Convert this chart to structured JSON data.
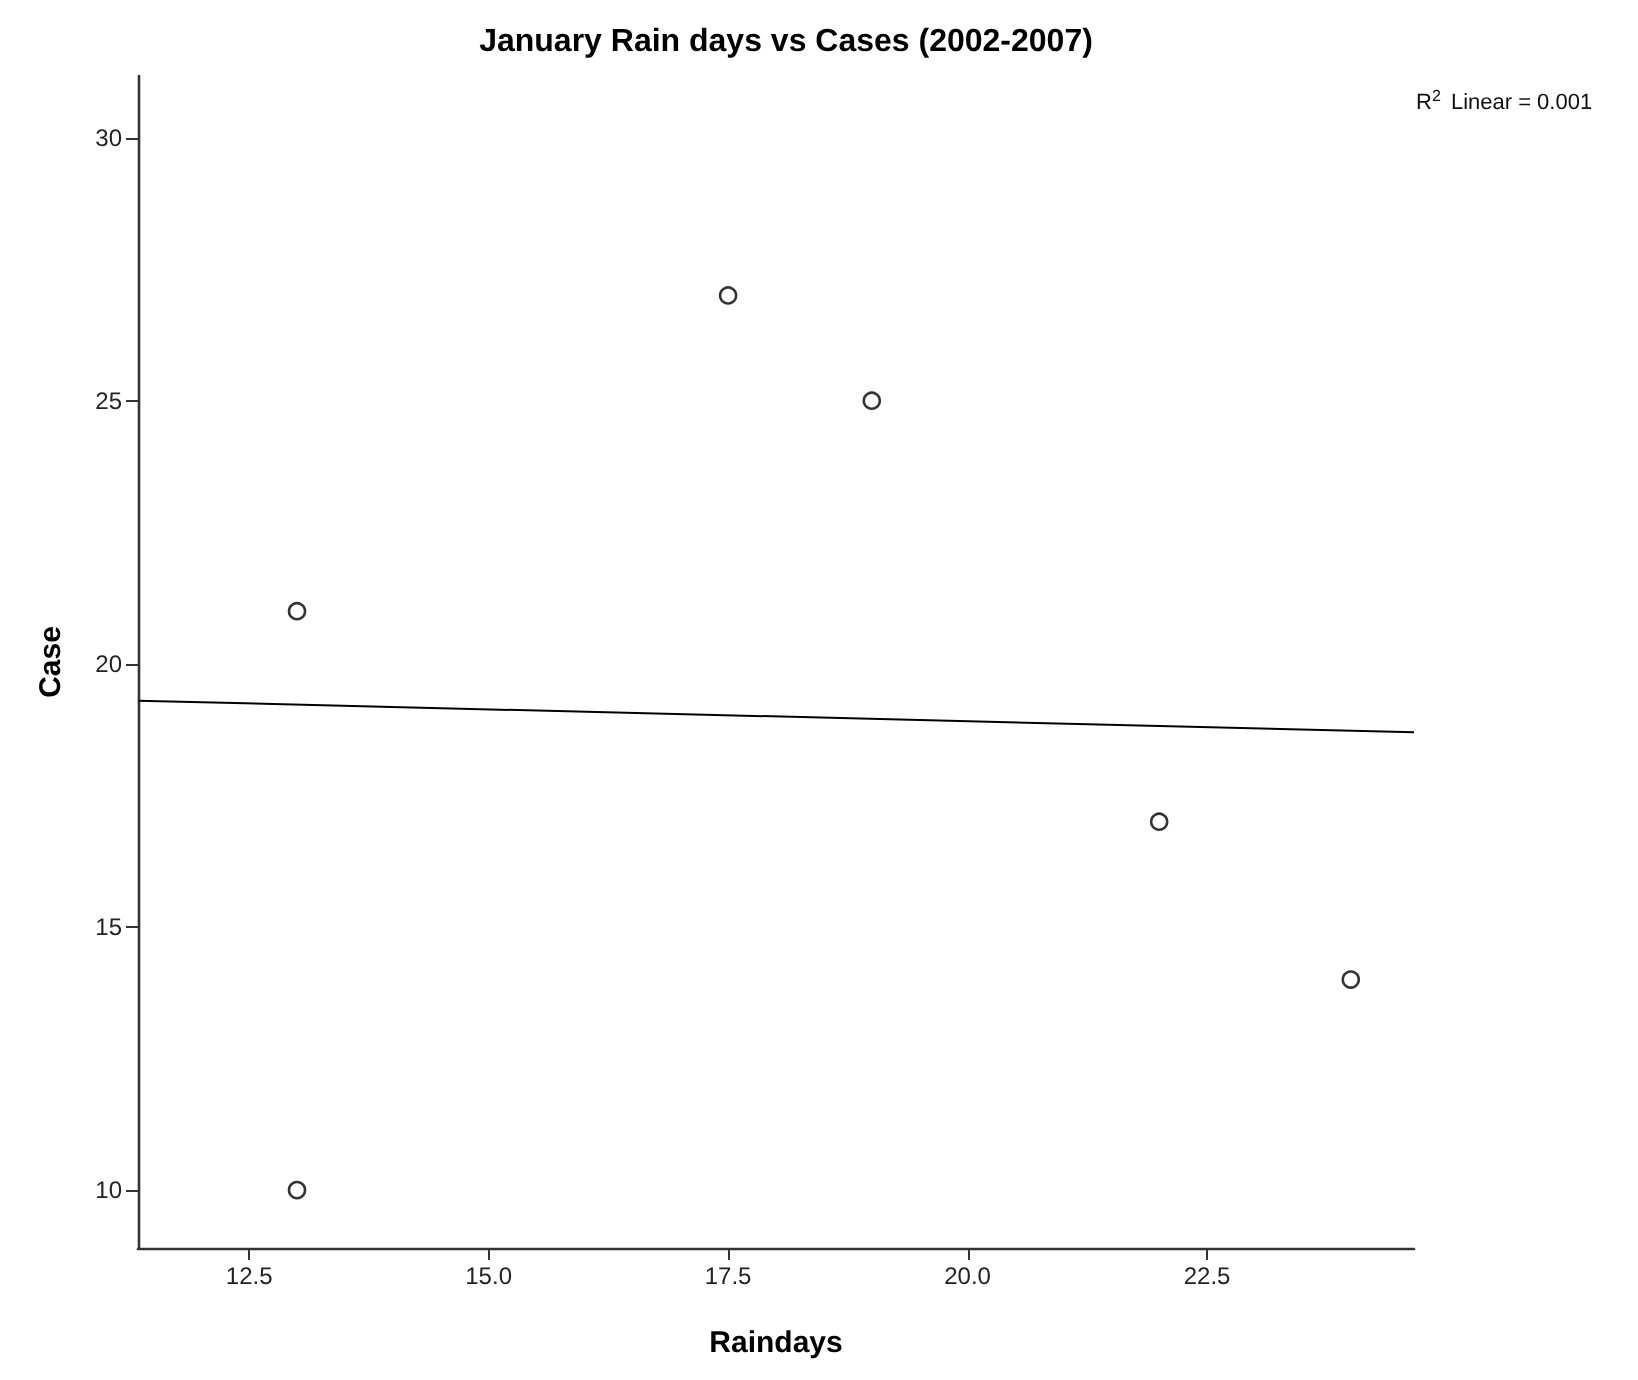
{
  "chart_data": {
    "type": "scatter",
    "title": "January Rain days vs Cases (2002-2007)",
    "xlabel": "Raindays",
    "ylabel": "Case",
    "series": [
      {
        "color": "#000000",
        "marker": "circle",
        "x": [
          13,
          17.5,
          19,
          13,
          22,
          24
        ],
        "values": [
          21,
          27,
          25,
          10,
          17,
          14
        ]
      },
      {
        "type": "line",
        "color": "#000000",
        "marker": "none",
        "line_style": "solid",
        "x": [
          11.34,
          24.66
        ],
        "values": [
          19.3,
          18.7
        ]
      }
    ],
    "xlim": [
      11.34,
      24.66
    ],
    "xticks": [
      {
        "value": 12.5,
        "label": "12.5"
      },
      {
        "value": 15,
        "label": "15.0"
      },
      {
        "value": 17.5,
        "label": "17.5"
      },
      {
        "value": 20,
        "label": "20.0"
      },
      {
        "value": 22.5,
        "label": "22.5"
      }
    ],
    "ylim": [
      8.9,
      31.17
    ],
    "yticks": [
      10,
      15,
      20,
      25,
      30
    ],
    "annotations": [
      "R$^{2}$ Linear = 0.001"
    ],
    "grid": false
  }
}
